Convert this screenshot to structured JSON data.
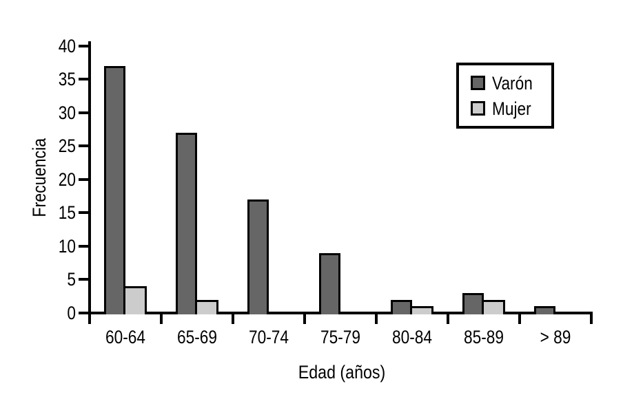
{
  "chart_data": {
    "type": "bar",
    "categories": [
      "60-64",
      "65-69",
      "70-74",
      "75-79",
      "80-84",
      "85-89",
      "> 89"
    ],
    "series": [
      {
        "name": "Varón",
        "color": "#666666",
        "values": [
          37,
          27,
          17,
          9,
          2,
          3,
          1
        ]
      },
      {
        "name": "Mujer",
        "color": "#cccccc",
        "values": [
          4,
          2,
          0,
          0,
          1,
          2,
          0
        ]
      }
    ],
    "xlabel": "Edad (años)",
    "ylabel": "Frecuencia",
    "ylim": [
      0,
      40
    ],
    "yticks": [
      0,
      5,
      10,
      15,
      20,
      25,
      30,
      35,
      40
    ],
    "grid": false,
    "legend_position": "top-right",
    "axis_color": "#000000",
    "bar_border_color": "#000000",
    "background_color": "#ffffff"
  }
}
